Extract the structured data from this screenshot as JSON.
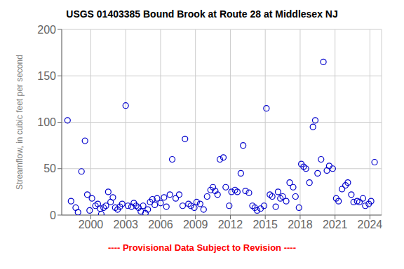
{
  "chart_data": {
    "type": "scatter",
    "title": "USGS 01403385 Bound Brook at Route 28 at Middlesex NJ",
    "y_label": "Streamflow, in cubic feet per second",
    "annotations": [
      {
        "text": "---- Provisional Data Subject to Revision ----",
        "color": "#ff0000"
      }
    ],
    "x": [
      1998.0,
      1998.3,
      1998.7,
      1998.9,
      1999.2,
      1999.5,
      1999.7,
      1999.9,
      2000.1,
      2000.4,
      2000.6,
      2000.8,
      2000.9,
      2001.1,
      2001.3,
      2001.5,
      2001.7,
      2001.9,
      2002.1,
      2002.3,
      2002.5,
      2002.7,
      2003.0,
      2003.2,
      2003.5,
      2003.7,
      2003.9,
      2004.1,
      2004.3,
      2004.5,
      2004.7,
      2004.9,
      2005.1,
      2005.3,
      2005.5,
      2005.7,
      2006.0,
      2006.3,
      2006.5,
      2006.8,
      2007.0,
      2007.3,
      2007.6,
      2007.9,
      2008.1,
      2008.4,
      2008.6,
      2008.9,
      2009.1,
      2009.4,
      2009.7,
      2010.0,
      2010.3,
      2010.5,
      2010.7,
      2010.9,
      2011.1,
      2011.4,
      2011.6,
      2011.9,
      2012.1,
      2012.4,
      2012.6,
      2012.9,
      2013.1,
      2013.3,
      2013.6,
      2013.9,
      2014.1,
      2014.3,
      2014.6,
      2014.9,
      2015.1,
      2015.4,
      2015.6,
      2015.9,
      2016.1,
      2016.3,
      2016.5,
      2016.8,
      2017.1,
      2017.4,
      2017.6,
      2017.9,
      2018.1,
      2018.3,
      2018.5,
      2018.8,
      2019.1,
      2019.3,
      2019.5,
      2019.8,
      2020.0,
      2020.3,
      2020.5,
      2020.8,
      2021.1,
      2021.3,
      2021.6,
      2021.9,
      2022.1,
      2022.4,
      2022.6,
      2022.9,
      2023.1,
      2023.4,
      2023.6,
      2023.9,
      2024.1,
      2024.4
    ],
    "values": [
      102,
      15,
      8,
      3,
      47,
      80,
      22,
      5,
      18,
      10,
      12,
      7,
      1,
      8,
      10,
      25,
      14,
      19,
      8,
      6,
      9,
      12,
      118,
      10,
      9,
      13,
      10,
      8,
      4,
      10,
      2,
      6,
      14,
      17,
      11,
      18,
      13,
      19,
      9,
      22,
      60,
      18,
      22,
      10,
      82,
      12,
      10,
      8,
      14,
      12,
      6,
      20,
      27,
      30,
      26,
      22,
      60,
      62,
      30,
      10,
      25,
      27,
      25,
      45,
      75,
      26,
      24,
      10,
      8,
      5,
      7,
      10,
      115,
      22,
      20,
      9,
      25,
      18,
      20,
      15,
      35,
      30,
      20,
      8,
      55,
      52,
      50,
      35,
      95,
      102,
      45,
      60,
      165,
      48,
      53,
      50,
      18,
      15,
      28,
      32,
      35,
      22,
      14,
      15,
      14,
      18,
      10,
      12,
      15,
      57
    ],
    "color": "#0000cc",
    "marker": "circle",
    "xlim": [
      1997.5,
      2025.0
    ],
    "xticks": [
      2000,
      2003,
      2006,
      2009,
      2012,
      2015,
      2018,
      2021,
      2024
    ],
    "ylim": [
      0,
      200
    ],
    "yticks": [
      0,
      50,
      100,
      150,
      200
    ],
    "grid": true
  }
}
